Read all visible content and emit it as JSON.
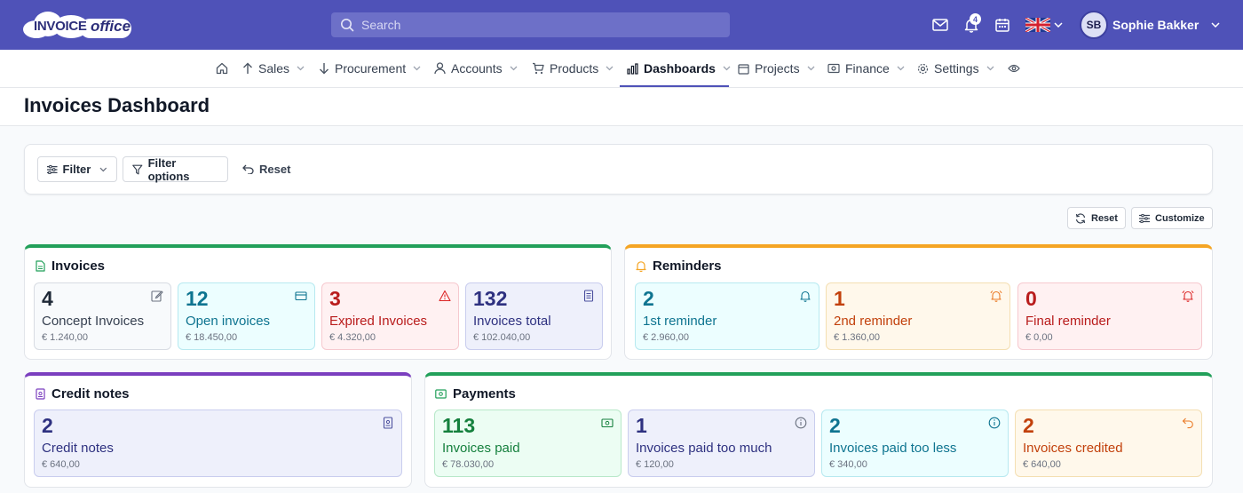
{
  "app": {
    "logo_text": "INVOICE",
    "logo_text2": "office"
  },
  "topbar": {
    "search_placeholder": "Search",
    "notification_count": "4",
    "user_initials": "SB",
    "user_name": "Sophie Bakker",
    "icons": [
      "mail-icon",
      "bell-icon",
      "calendar-icon",
      "uk-flag-icon"
    ]
  },
  "nav": {
    "items": [
      {
        "label": "Sales",
        "icon": "arrow-up-icon"
      },
      {
        "label": "Procurement",
        "icon": "arrow-down-icon"
      },
      {
        "label": "Accounts",
        "icon": "user-icon"
      },
      {
        "label": "Products",
        "icon": "cart-icon"
      },
      {
        "label": "Dashboards",
        "icon": "bar-chart-icon",
        "active": true
      },
      {
        "label": "Projects",
        "icon": "calendar-icon"
      },
      {
        "label": "Finance",
        "icon": "money-icon"
      },
      {
        "label": "Settings",
        "icon": "gear-icon"
      }
    ]
  },
  "page": {
    "title": "Invoices Dashboard"
  },
  "filters": {
    "filter_label": "Filter",
    "filter_options_label": "Filter options",
    "reset_label": "Reset"
  },
  "dashboard_actions": {
    "reset_label": "Reset",
    "customize_label": "Customize"
  },
  "panels": {
    "invoices": {
      "title": "Invoices",
      "cards": [
        {
          "count": "4",
          "label": "Concept Invoices",
          "amount": "€ 1.240,00"
        },
        {
          "count": "12",
          "label": "Open invoices",
          "amount": "€ 18.450,00"
        },
        {
          "count": "3",
          "label": "Expired Invoices",
          "amount": "€ 4.320,00"
        },
        {
          "count": "132",
          "label": "Invoices total",
          "amount": "€ 102.040,00"
        }
      ]
    },
    "reminders": {
      "title": "Reminders",
      "cards": [
        {
          "count": "2",
          "label": "1st reminder",
          "amount": "€ 2.960,00"
        },
        {
          "count": "1",
          "label": "2nd reminder",
          "amount": "€ 1.360,00"
        },
        {
          "count": "0",
          "label": "Final reminder",
          "amount": "€ 0,00"
        }
      ]
    },
    "credit_notes": {
      "title": "Credit notes",
      "cards": [
        {
          "count": "2",
          "label": "Credit notes",
          "amount": "€ 640,00"
        }
      ]
    },
    "payments": {
      "title": "Payments",
      "cards": [
        {
          "count": "113",
          "label": "Invoices paid",
          "amount": "€ 78.030,00"
        },
        {
          "count": "1",
          "label": "Invoices paid too much",
          "amount": "€ 120,00"
        },
        {
          "count": "2",
          "label": "Invoices paid too less",
          "amount": "€ 340,00"
        },
        {
          "count": "2",
          "label": "Invoices credited",
          "amount": "€ 640,00"
        }
      ]
    }
  },
  "colors": {
    "brand": "#4f52b8",
    "invoices_accent": "#22a05a",
    "reminders_accent": "#f5a524",
    "credit_notes_accent": "#7b3fbf",
    "payments_accent": "#22a05a"
  }
}
